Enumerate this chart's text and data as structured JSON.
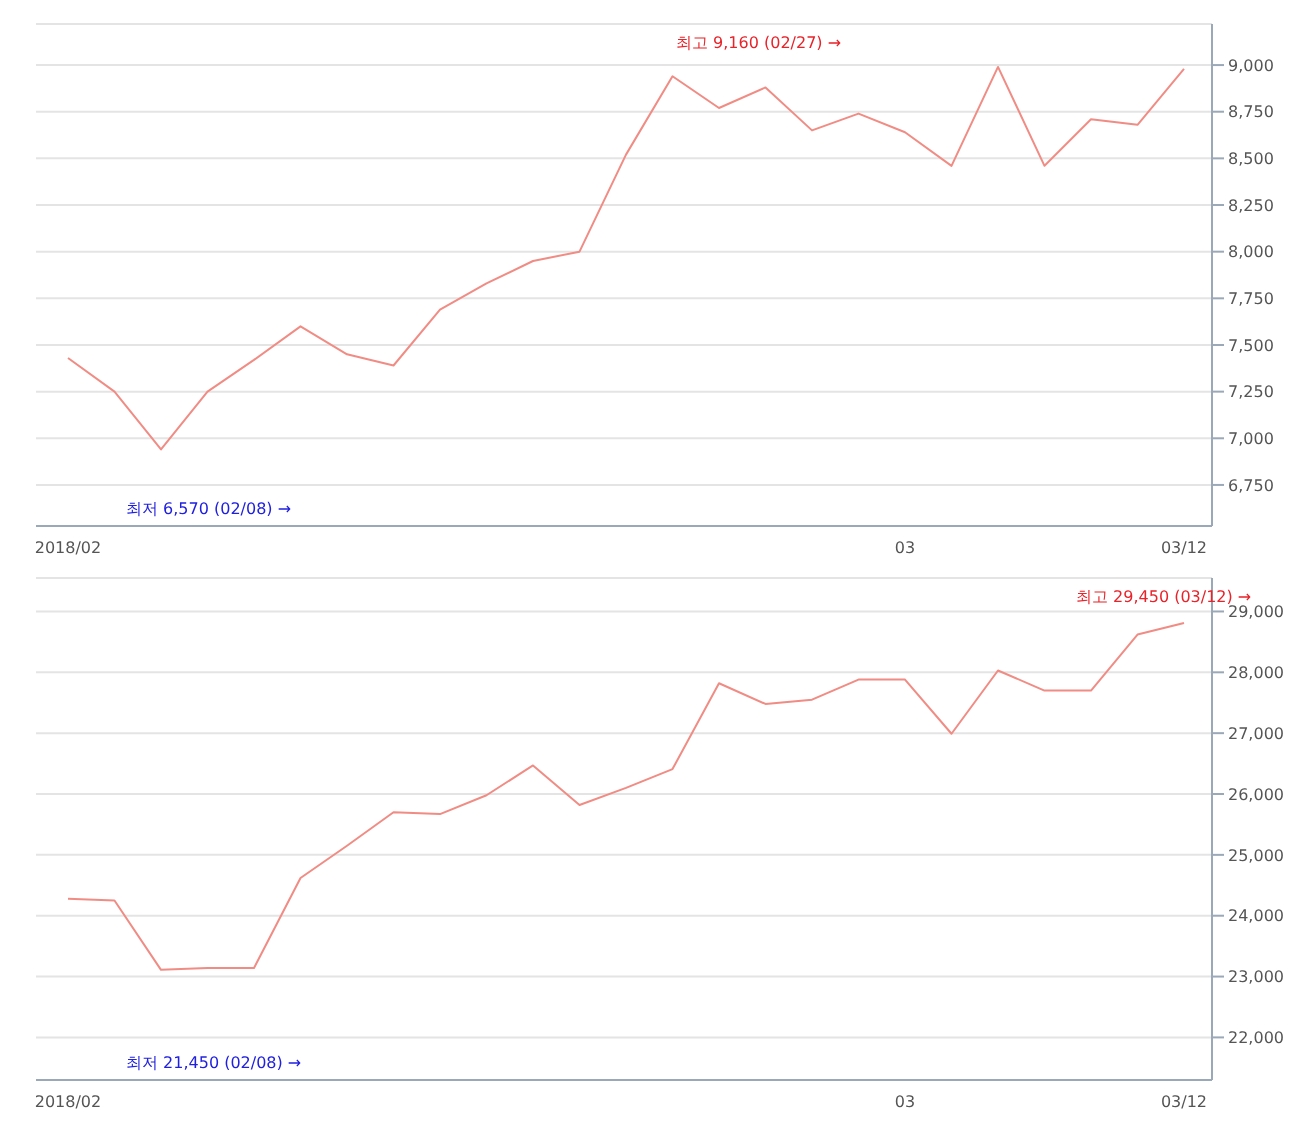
{
  "chart_data": [
    {
      "type": "line",
      "categories": [
        "2018/02",
        null,
        null,
        null,
        null,
        null,
        null,
        null,
        null,
        null,
        null,
        null,
        null,
        null,
        null,
        null,
        null,
        null,
        "03",
        null,
        null,
        null,
        null,
        null,
        "03/12"
      ],
      "series": [
        {
          "color": "#f08c84",
          "values": [
            7430,
            7250,
            6940,
            7250,
            7420,
            7600,
            7450,
            7390,
            7690,
            7830,
            7950,
            8000,
            8520,
            8940,
            8770,
            8880,
            8650,
            8740,
            8640,
            8460,
            8990,
            8460,
            8710,
            8680,
            8980
          ]
        }
      ],
      "ylim": [
        6530,
        9220
      ],
      "yticks": [
        {
          "value": 6750,
          "label": "6,750"
        },
        {
          "value": 7000,
          "label": "7,000"
        },
        {
          "value": 7250,
          "label": "7,250"
        },
        {
          "value": 7500,
          "label": "7,500"
        },
        {
          "value": 7750,
          "label": "7,750"
        },
        {
          "value": 8000,
          "label": "8,000"
        },
        {
          "value": 8250,
          "label": "8,250"
        },
        {
          "value": 8500,
          "label": "8,500"
        },
        {
          "value": 8750,
          "label": "8,750"
        },
        {
          "value": 9000,
          "label": "9,000"
        }
      ],
      "grid": "y",
      "legend": false,
      "annotations": [
        "최고 9,160 (02/27) →",
        "최저 6,570 (02/08) →"
      ]
    },
    {
      "type": "line",
      "categories": [
        "2018/02",
        null,
        null,
        null,
        null,
        null,
        null,
        null,
        null,
        null,
        null,
        null,
        null,
        null,
        null,
        null,
        null,
        null,
        "03",
        null,
        null,
        null,
        null,
        null,
        "03/12"
      ],
      "series": [
        {
          "color": "#f08c84",
          "values": [
            24280,
            24250,
            23110,
            23140,
            23140,
            24620,
            25150,
            25700,
            25670,
            25980,
            26470,
            25820,
            26100,
            26410,
            27820,
            27480,
            27550,
            27880,
            27880,
            26990,
            28030,
            27700,
            27700,
            28620,
            28810
          ]
        }
      ],
      "ylim": [
        21300,
        29550
      ],
      "yticks": [
        {
          "value": 22000,
          "label": "22,000"
        },
        {
          "value": 23000,
          "label": "23,000"
        },
        {
          "value": 24000,
          "label": "24,000"
        },
        {
          "value": 25000,
          "label": "25,000"
        },
        {
          "value": 26000,
          "label": "26,000"
        },
        {
          "value": 27000,
          "label": "27,000"
        },
        {
          "value": 28000,
          "label": "28,000"
        },
        {
          "value": 29000,
          "label": "29,000"
        }
      ],
      "grid": "y",
      "legend": false,
      "annotations": [
        "최고 29,450 (03/12) →",
        "최저 21,450 (02/08) →"
      ]
    }
  ]
}
